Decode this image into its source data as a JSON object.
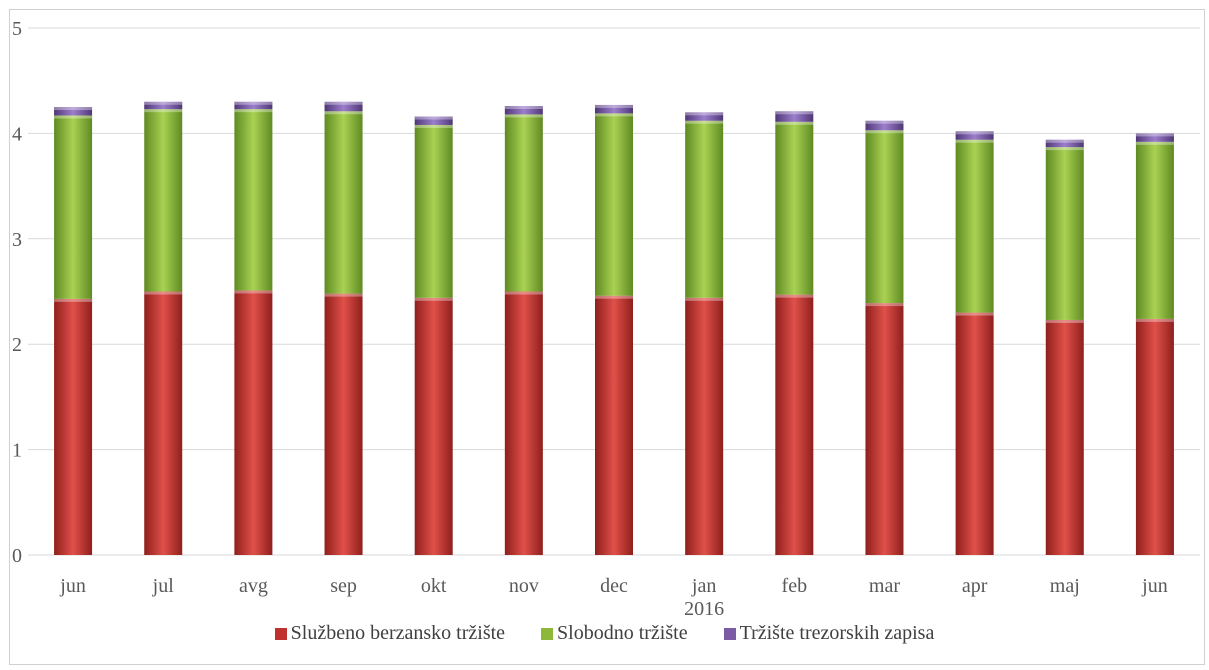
{
  "chart_data": {
    "type": "bar",
    "stacked": true,
    "categories": [
      "jun",
      "jul",
      "avg",
      "sep",
      "okt",
      "nov",
      "dec",
      "jan",
      "feb",
      "mar",
      "apr",
      "maj",
      "jun"
    ],
    "category_sublabels": [
      "",
      "",
      "",
      "",
      "",
      "",
      "",
      "2016",
      "",
      "",
      "",
      "",
      ""
    ],
    "series": [
      {
        "name": "Službeno berzansko tržište",
        "color": "#c0302c",
        "values": [
          2.43,
          2.5,
          2.51,
          2.48,
          2.44,
          2.5,
          2.46,
          2.44,
          2.47,
          2.39,
          2.3,
          2.23,
          2.24
        ]
      },
      {
        "name": "Slobodno tržište",
        "color": "#8db83a",
        "values": [
          1.74,
          1.73,
          1.72,
          1.73,
          1.64,
          1.68,
          1.73,
          1.68,
          1.64,
          1.64,
          1.64,
          1.64,
          1.68
        ]
      },
      {
        "name": "Tržište trezorskih zapisa",
        "color": "#7b5aa6",
        "values": [
          0.08,
          0.07,
          0.07,
          0.09,
          0.08,
          0.08,
          0.08,
          0.08,
          0.1,
          0.09,
          0.08,
          0.07,
          0.08
        ]
      }
    ],
    "ylim": [
      0,
      5
    ],
    "yticks": [
      0,
      1,
      2,
      3,
      4,
      5
    ],
    "title": "",
    "xlabel": "",
    "ylabel": "",
    "grid": true,
    "legend_position": "bottom"
  }
}
